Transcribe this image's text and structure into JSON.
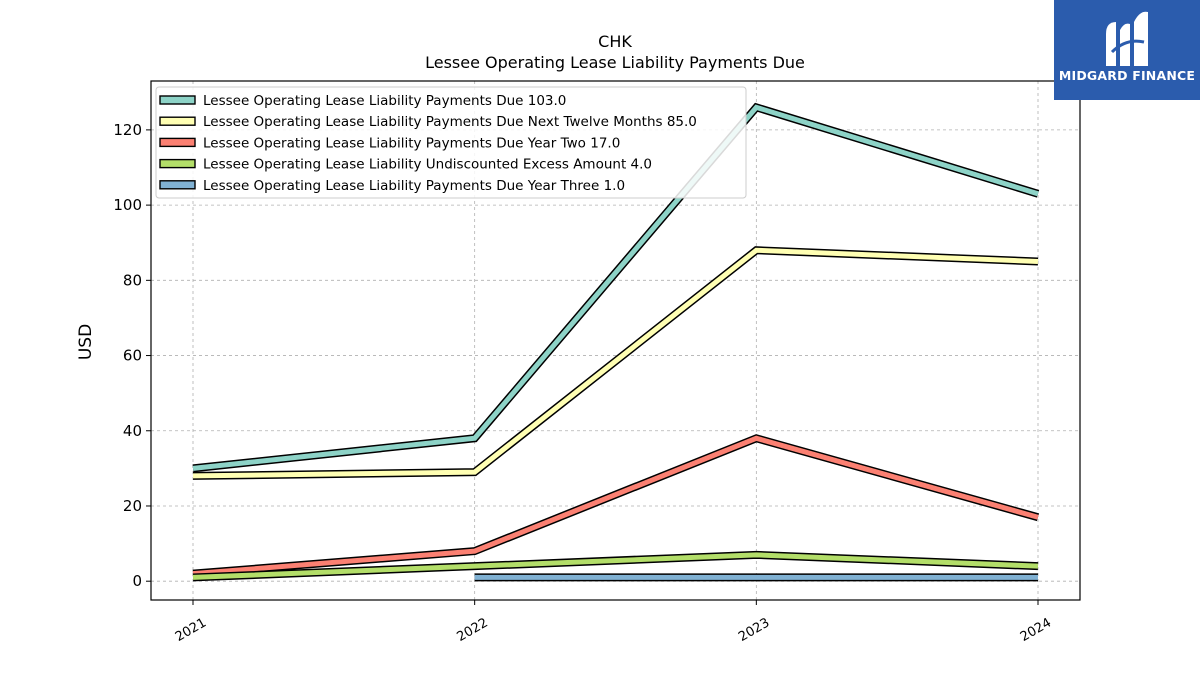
{
  "chart_data": {
    "type": "line",
    "title": "CHK",
    "subtitle": "Lessee Operating Lease Liability Payments Due",
    "xlabel": "",
    "ylabel": "USD",
    "categories": [
      "2021",
      "2022",
      "2023",
      "2024"
    ],
    "ylim": [
      -5,
      133
    ],
    "yticks": [
      0,
      20,
      40,
      60,
      80,
      100,
      120
    ],
    "grid": true,
    "legend_position": "top-left",
    "series": [
      {
        "name": "Lessee Operating Lease Liability Payments Due",
        "legend_label": "Lessee Operating Lease Liability Payments Due  103.0",
        "color": "#8dd3c7",
        "values": [
          30,
          38,
          126,
          103
        ]
      },
      {
        "name": "Lessee Operating Lease Liability Payments Due Next Twelve Months",
        "legend_label": "Lessee Operating Lease Liability Payments Due Next Twelve Months  85.0",
        "color": "#ffffb3",
        "values": [
          28,
          29,
          88,
          85
        ]
      },
      {
        "name": "Lessee Operating Lease Liability Payments Due Year Two",
        "legend_label": "Lessee Operating Lease Liability Payments Due Year Two  17.0",
        "color": "#fb8072",
        "values": [
          2,
          8,
          38,
          17
        ]
      },
      {
        "name": "Lessee Operating Lease Liability Undiscounted Excess Amount",
        "legend_label": "Lessee Operating Lease Liability Undiscounted Excess Amount  4.0",
        "color": "#b3de69",
        "values": [
          1,
          4,
          7,
          4
        ]
      },
      {
        "name": "Lessee Operating Lease Liability Payments Due Year Three",
        "legend_label": "Lessee Operating Lease Liability Payments Due Year Three  1.0",
        "color": "#80b1d3",
        "values": [
          null,
          1,
          1,
          1
        ]
      }
    ]
  },
  "logo": {
    "text": "MIDGARD FINANCE"
  }
}
